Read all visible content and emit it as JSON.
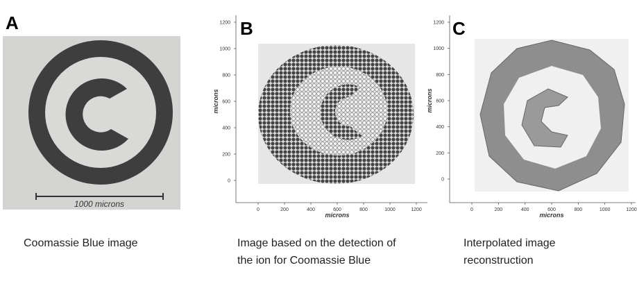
{
  "panels": [
    {
      "letter": "A",
      "scale_bar": "1000 microns",
      "caption": "Coomassie Blue image"
    },
    {
      "letter": "B",
      "caption": "Image based on the detection of the ion for Coomassie Blue",
      "xlabel": "microns",
      "ylabel": "microns",
      "xticks": [
        0,
        200,
        400,
        600,
        800,
        1000,
        1200
      ],
      "yticks": [
        0,
        200,
        400,
        600,
        800,
        1000,
        1200
      ]
    },
    {
      "letter": "C",
      "caption": "Interpolated image reconstruction",
      "xlabel": "microns",
      "ylabel": "microns",
      "xticks": [
        0,
        200,
        400,
        600,
        800,
        1000,
        1200
      ],
      "yticks": [
        0,
        200,
        400,
        600,
        800,
        1000,
        1200
      ]
    }
  ]
}
